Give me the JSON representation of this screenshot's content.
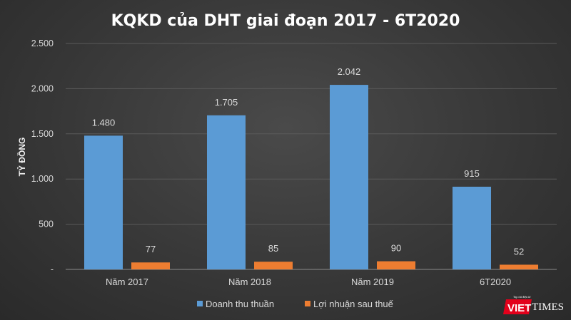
{
  "chart_data": {
    "type": "bar",
    "title": "KQKD của DHT giai đoạn 2017 - 6T2020",
    "ylabel": "TỶ ĐỒNG",
    "xlabel": "",
    "ylim": [
      0,
      2500
    ],
    "yticks": [
      0,
      500,
      1000,
      1500,
      2000,
      2500
    ],
    "ytick_labels": [
      "-",
      "500",
      "1.000",
      "1.500",
      "2.000",
      "2.500"
    ],
    "grid": true,
    "legend_position": "bottom",
    "categories": [
      "Năm 2017",
      "Năm 2018",
      "Năm 2019",
      "6T2020"
    ],
    "series": [
      {
        "name": "Doanh thu thuần",
        "values": [
          1480,
          1705,
          2042,
          915
        ],
        "labels": [
          "1.480",
          "1.705",
          "2.042",
          "915"
        ],
        "color": "#5b9bd5"
      },
      {
        "name": "Lợi nhuận sau thuế",
        "values": [
          77,
          85,
          90,
          52
        ],
        "labels": [
          "77",
          "85",
          "90",
          "52"
        ],
        "color": "#ed7d31"
      }
    ]
  },
  "watermark": {
    "text": "VIETTIMES",
    "tagline": "Tạp chí điện tử"
  }
}
